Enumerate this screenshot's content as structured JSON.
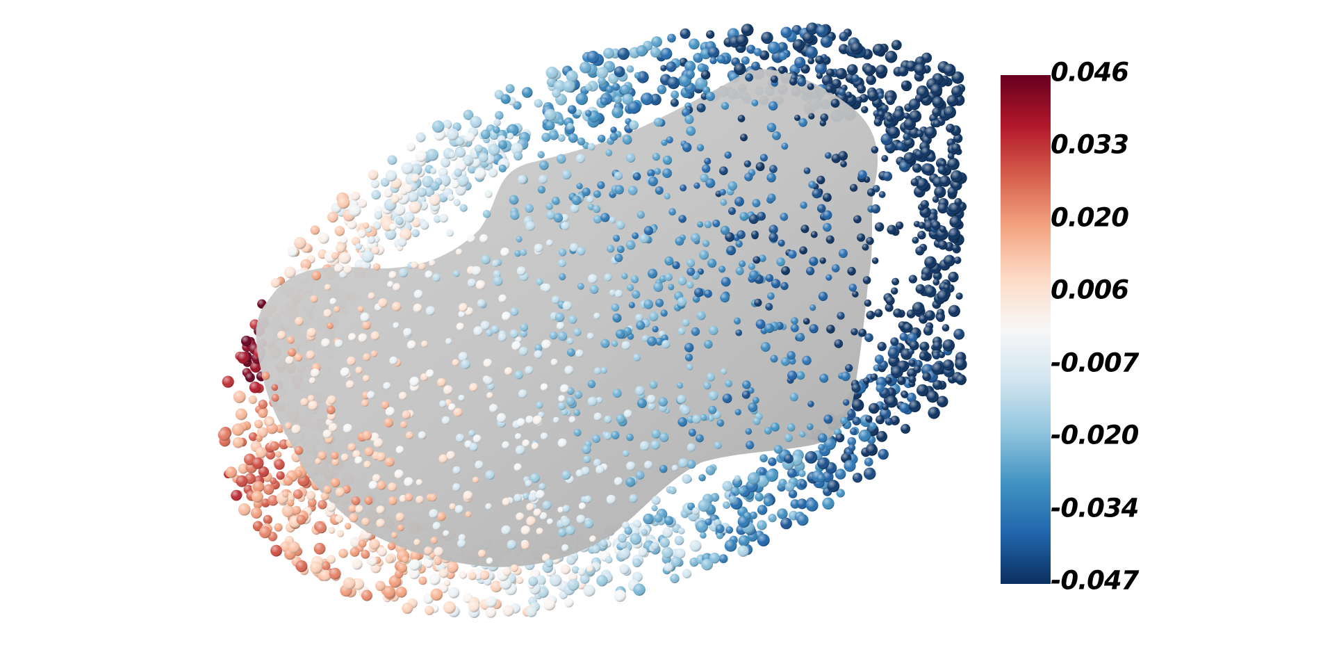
{
  "figure": {
    "description_kind": "3D rendered scatter of spheres over a gray surface, colored by scalar value",
    "surface_color": "#bdbdbd",
    "colormap": "RdBu_r",
    "colormap_stops": [
      "#0b305f",
      "#2166ac",
      "#4393c3",
      "#92c5de",
      "#d1e5f0",
      "#f7f7f7",
      "#fddbc7",
      "#f4a582",
      "#d6604d",
      "#b2182b",
      "#67001f"
    ]
  },
  "colorbar": {
    "min": -0.047,
    "max": 0.046,
    "tick_labels": [
      "0.046",
      "0.033",
      "0.020",
      "0.006",
      "-0.007",
      "-0.020",
      "-0.034",
      "-0.047"
    ]
  }
}
